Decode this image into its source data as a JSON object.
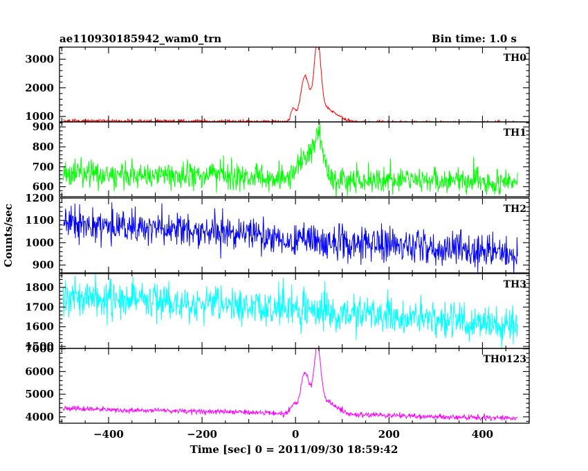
{
  "chart_data": {
    "type": "line",
    "title": "ae110930185942_wam0_trn",
    "subtitle": "Bin time: 1.0 s",
    "xlabel": "Time [sec] 0 = 2011/09/30 18:59:42",
    "ylabel": "Counts/sec",
    "xlim": [
      -505,
      500
    ],
    "x_ticks": [
      -400,
      -200,
      0,
      200,
      400
    ],
    "x_tick_labels": [
      "−400",
      "−200",
      "0",
      "200",
      "400"
    ],
    "x_range_data": [
      -497,
      475
    ],
    "grid": false,
    "panels": [
      {
        "name": "TH0",
        "color": "#ff0000",
        "ylim": [
          810,
          3420
        ],
        "y_ticks": [
          1000,
          2000,
          3000
        ],
        "y_tick_labels": [
          "1000",
          "2000",
          "3000"
        ],
        "baseline_start": 850,
        "baseline_end": 780,
        "noise": 28,
        "peaks": [
          {
            "t": -5,
            "amp": 430,
            "width": 5
          },
          {
            "t": 20,
            "amp": 1450,
            "width": 9
          },
          {
            "t": 47,
            "amp": 2450,
            "width": 7
          },
          {
            "t": 60,
            "amp": 500,
            "width": 25
          }
        ]
      },
      {
        "name": "TH1",
        "color": "#00ff00",
        "ylim": [
          550,
          925
        ],
        "y_ticks": [
          600,
          700,
          800,
          900
        ],
        "y_tick_labels": [
          "600",
          "700",
          "800",
          "900"
        ],
        "baseline_start": 665,
        "baseline_end": 625,
        "noise": 34,
        "peaks": [
          {
            "t": 20,
            "amp": 80,
            "width": 18
          },
          {
            "t": 48,
            "amp": 180,
            "width": 12
          }
        ]
      },
      {
        "name": "TH2",
        "color": "#0000ff",
        "ylim": [
          865,
          1200
        ],
        "y_ticks": [
          900,
          1000,
          1100,
          1200
        ],
        "y_tick_labels": [
          "900",
          "1000",
          "1100",
          "1200"
        ],
        "baseline_start": 1090,
        "baseline_end": 950,
        "noise": 38,
        "peaks": []
      },
      {
        "name": "TH3",
        "color": "#00ffff",
        "ylim": [
          1490,
          1870
        ],
        "y_ticks": [
          1500,
          1600,
          1700,
          1800
        ],
        "y_tick_labels": [
          "1500",
          "1600",
          "1700",
          "1800"
        ],
        "baseline_start": 1760,
        "baseline_end": 1610,
        "noise": 45,
        "peaks": []
      },
      {
        "name": "TH0123",
        "color": "#ff00ff",
        "ylim": [
          3720,
          7020
        ],
        "y_ticks": [
          4000,
          5000,
          6000,
          7000
        ],
        "y_tick_labels": [
          "4000",
          "5000",
          "6000",
          "7000"
        ],
        "baseline_start": 4370,
        "baseline_end": 3930,
        "noise": 60,
        "peaks": [
          {
            "t": -5,
            "amp": 400,
            "width": 6
          },
          {
            "t": 20,
            "amp": 1650,
            "width": 9
          },
          {
            "t": 47,
            "amp": 2500,
            "width": 7
          },
          {
            "t": 60,
            "amp": 600,
            "width": 25
          }
        ]
      }
    ]
  }
}
